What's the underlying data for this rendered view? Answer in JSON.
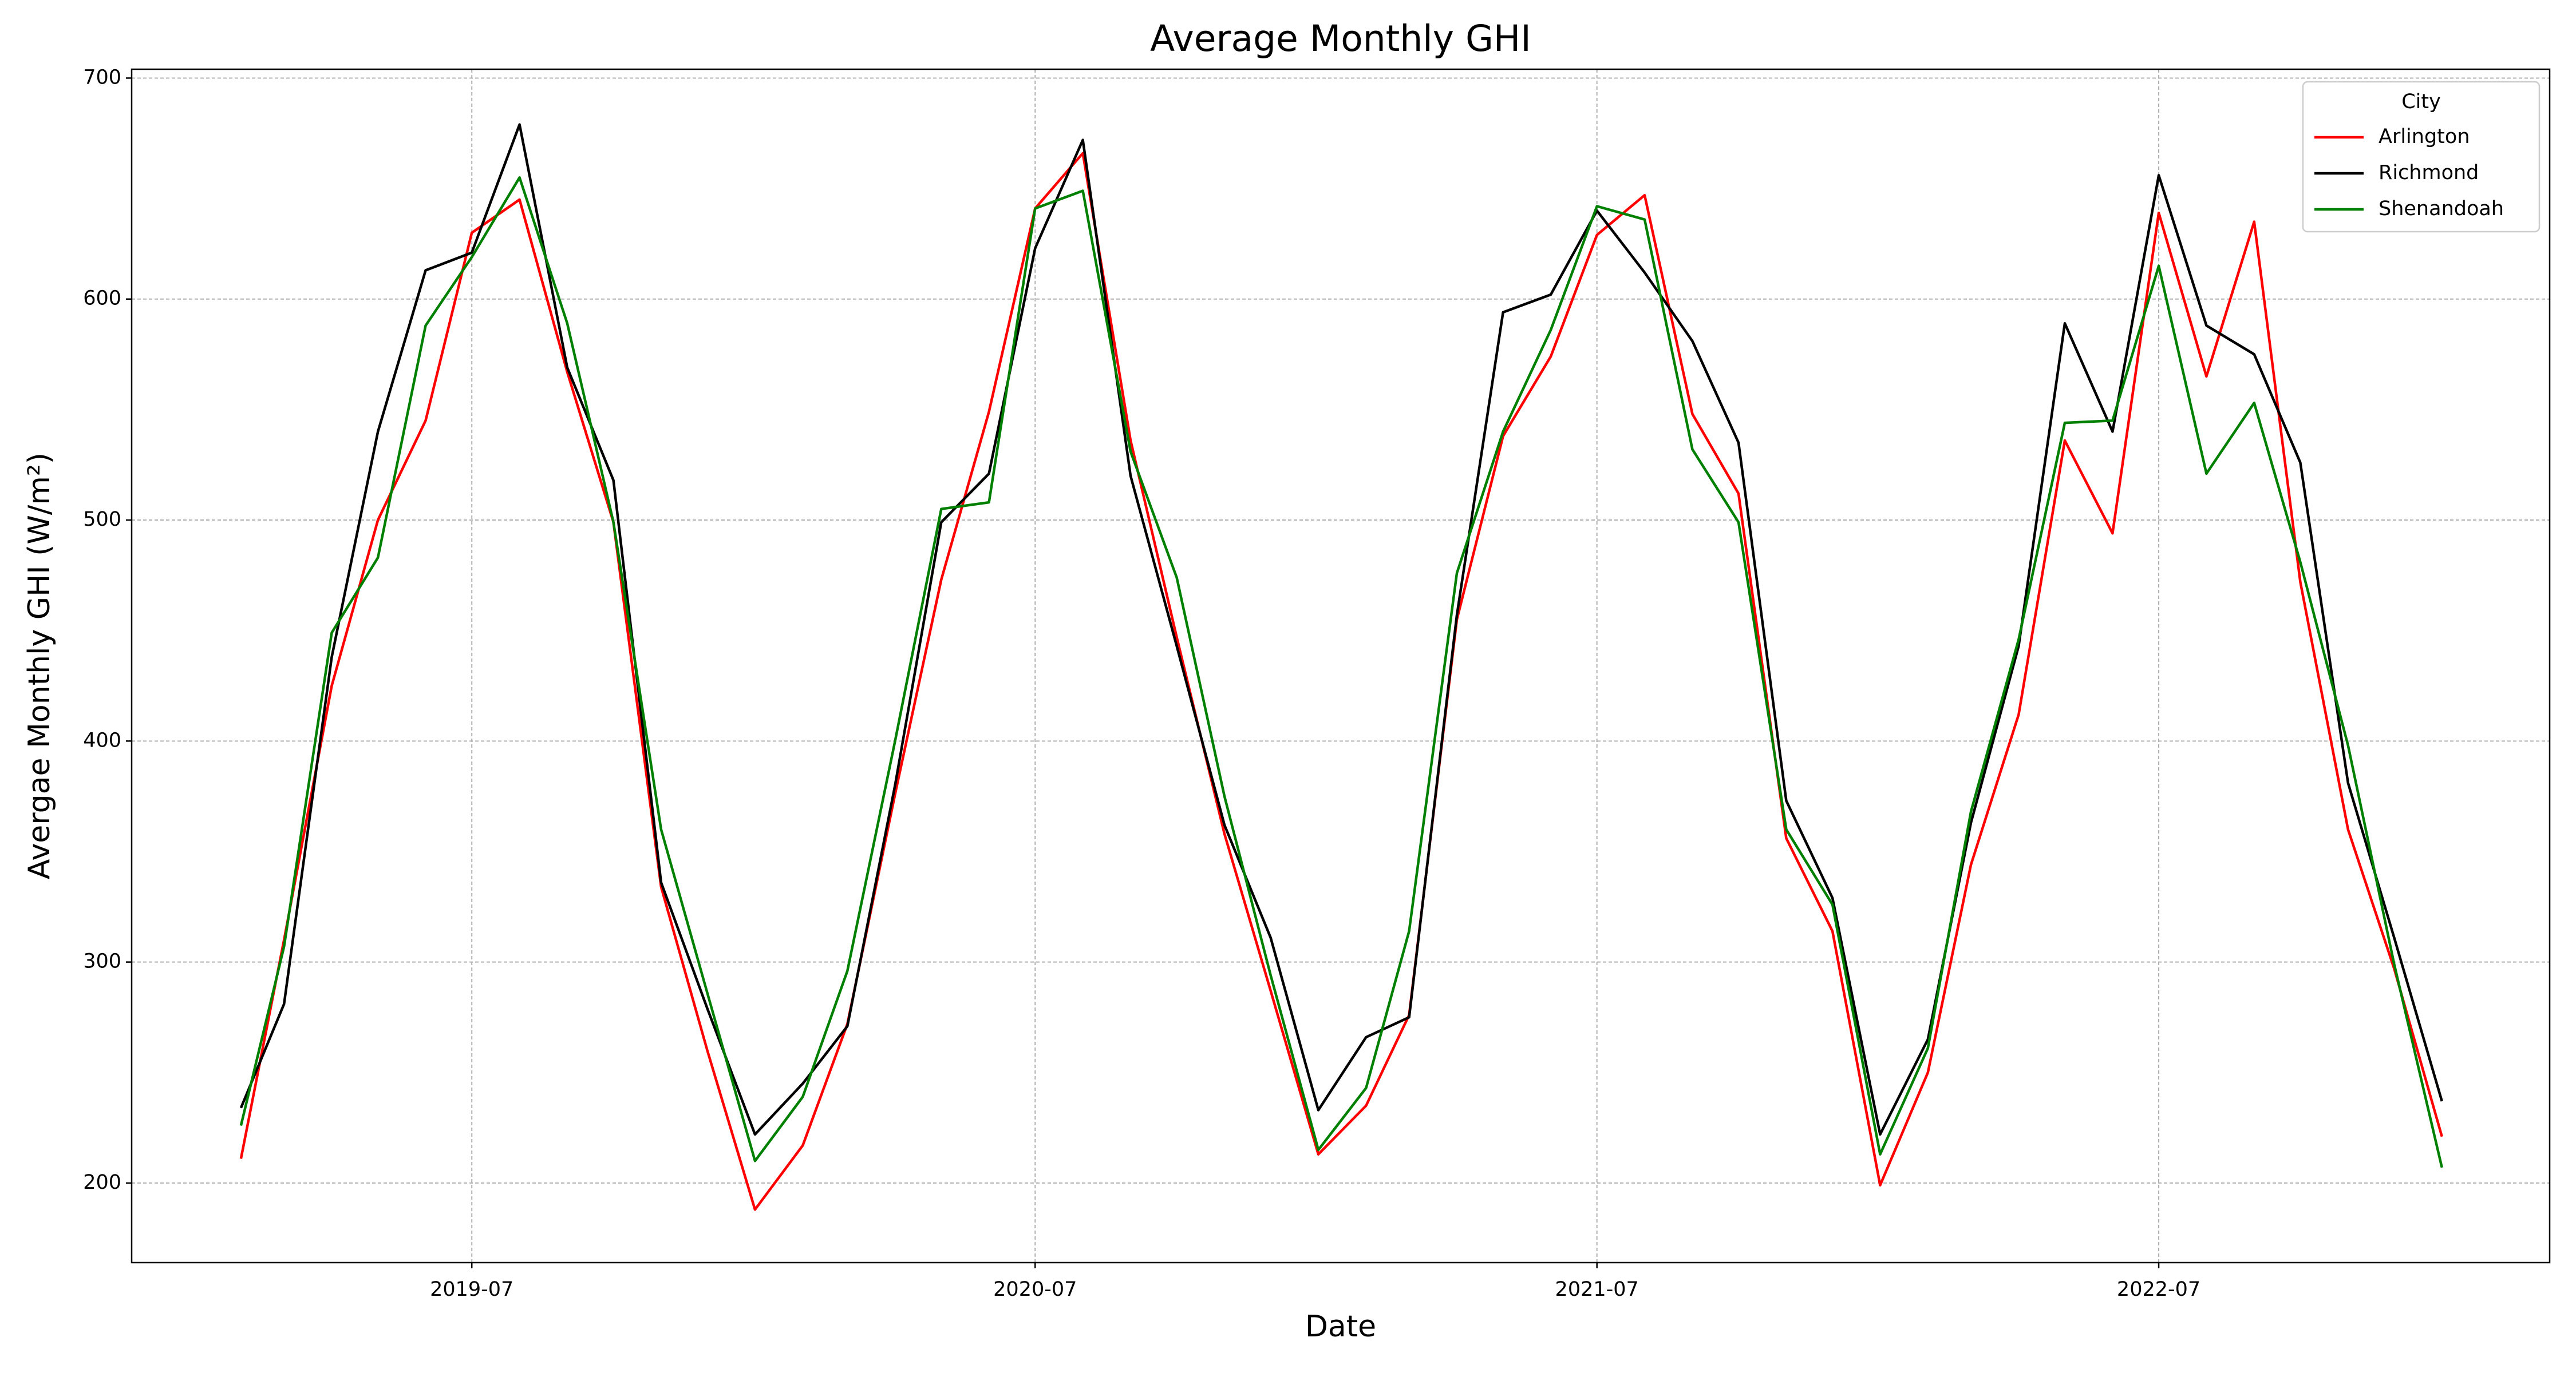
{
  "chart_data": {
    "type": "line",
    "title": "Average Monthly GHI",
    "x_label": "Date",
    "y_label": "Avergae Monthly GHI (W/m²)",
    "legend_title": "City",
    "legend_position": "upper right",
    "grid": true,
    "x": [
      "2019-02",
      "2019-03",
      "2019-04",
      "2019-05",
      "2019-06",
      "2019-07",
      "2019-08",
      "2019-09",
      "2019-10",
      "2019-11",
      "2019-12",
      "2020-01",
      "2020-02",
      "2020-03",
      "2020-04",
      "2020-05",
      "2020-06",
      "2020-07",
      "2020-08",
      "2020-09",
      "2020-10",
      "2020-11",
      "2020-12",
      "2021-01",
      "2021-02",
      "2021-03",
      "2021-04",
      "2021-05",
      "2021-06",
      "2021-07",
      "2021-08",
      "2021-09",
      "2021-10",
      "2021-11",
      "2021-12",
      "2022-01",
      "2022-02",
      "2022-03",
      "2022-04",
      "2022-05",
      "2022-06",
      "2022-07",
      "2022-08",
      "2022-09",
      "2022-10",
      "2022-11",
      "2022-12",
      "2023-01"
    ],
    "series": [
      {
        "name": "Arlington",
        "color": "#ff0000",
        "values": [
          211,
          310,
          425,
          500,
          545,
          630,
          645,
          567,
          499,
          334,
          260,
          188,
          217,
          272,
          376,
          473,
          549,
          641,
          666,
          536,
          447,
          358,
          287,
          213,
          235,
          276,
          455,
          538,
          574,
          629,
          647,
          548,
          512,
          356,
          314,
          199,
          250,
          344,
          412,
          536,
          494,
          639,
          565,
          635,
          472,
          360,
          297,
          221
        ]
      },
      {
        "name": "Richmond",
        "color": "#000000",
        "values": [
          234,
          281,
          438,
          540,
          613,
          621,
          679,
          569,
          518,
          336,
          279,
          222,
          245,
          271,
          380,
          499,
          521,
          623,
          672,
          520,
          443,
          362,
          311,
          233,
          266,
          275,
          457,
          594,
          602,
          640,
          612,
          581,
          535,
          373,
          329,
          222,
          265,
          363,
          443,
          589,
          540,
          656,
          588,
          575,
          526,
          381,
          311,
          237
        ]
      },
      {
        "name": "Shenandoah",
        "color": "#008000",
        "values": [
          226,
          307,
          449,
          483,
          588,
          619,
          655,
          589,
          499,
          360,
          286,
          210,
          239,
          296,
          400,
          505,
          508,
          641,
          649,
          531,
          474,
          375,
          294,
          215,
          243,
          314,
          476,
          540,
          586,
          642,
          636,
          532,
          499,
          360,
          326,
          213,
          261,
          368,
          446,
          544,
          545,
          615,
          521,
          553,
          481,
          398,
          299,
          207
        ]
      }
    ],
    "xlim": [
      "2018-11-22",
      "2023-03-12"
    ],
    "xticks": [
      "2019-07",
      "2020-07",
      "2021-07",
      "2022-07"
    ],
    "ylim": [
      164,
      704
    ],
    "yticks": [
      200,
      300,
      400,
      500,
      600,
      700
    ]
  }
}
